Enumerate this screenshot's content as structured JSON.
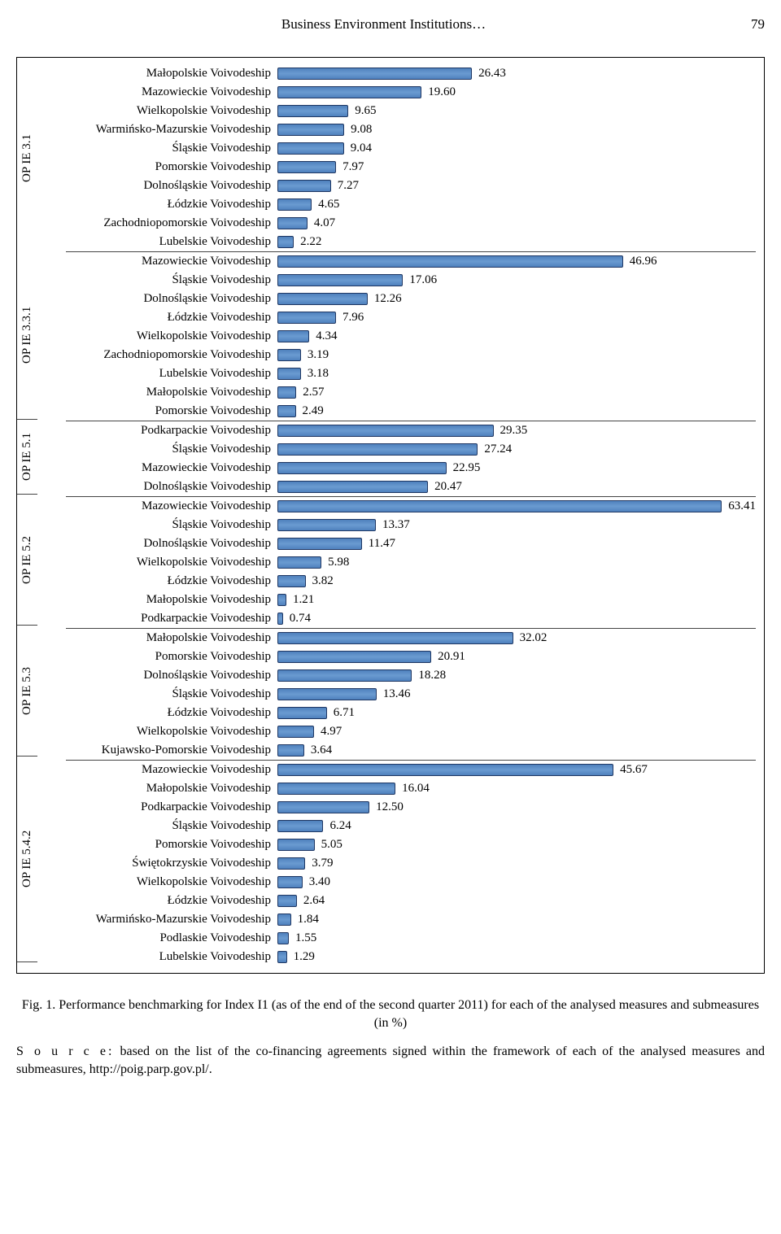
{
  "page_header": {
    "title": "Business Environment Institutions…",
    "page_no": "79"
  },
  "chart": {
    "type": "bar",
    "orientation": "horizontal",
    "x_max": 65,
    "bar_fill": "#4f81bd",
    "bar_border": "#1f3763",
    "grid_color": "#444444",
    "background": "#ffffff",
    "label_fontsize": 15,
    "value_fontsize": 15,
    "group_fontsize": 15,
    "groups": [
      {
        "name": "OP IE 3.1",
        "rows": [
          {
            "label": "Małopolskie Voivodeship",
            "value": 26.43
          },
          {
            "label": "Mazowieckie Voivodeship",
            "value": 19.6
          },
          {
            "label": "Wielkopolskie Voivodeship",
            "value": 9.65
          },
          {
            "label": "Warmińsko-Mazurskie Voivodeship",
            "value": 9.08
          },
          {
            "label": "Śląskie Voivodeship",
            "value": 9.04
          },
          {
            "label": "Pomorskie Voivodeship",
            "value": 7.97
          },
          {
            "label": "Dolnośląskie Voivodeship",
            "value": 7.27
          },
          {
            "label": "Łódzkie Voivodeship",
            "value": 4.65
          },
          {
            "label": "Zachodniopomorskie Voivodeship",
            "value": 4.07
          },
          {
            "label": "Lubelskie Voivodeship",
            "value": 2.22
          }
        ]
      },
      {
        "name": "OP IE 3.3.1",
        "rows": [
          {
            "label": "Mazowieckie Voivodeship",
            "value": 46.96
          },
          {
            "label": "Śląskie Voivodeship",
            "value": 17.06
          },
          {
            "label": "Dolnośląskie Voivodeship",
            "value": 12.26
          },
          {
            "label": "Łódzkie Voivodeship",
            "value": 7.96
          },
          {
            "label": "Wielkopolskie Voivodeship",
            "value": 4.34
          },
          {
            "label": "Zachodniopomorskie Voivodeship",
            "value": 3.19
          },
          {
            "label": "Lubelskie Voivodeship",
            "value": 3.18
          },
          {
            "label": "Małopolskie Voivodeship",
            "value": 2.57
          },
          {
            "label": "Pomorskie Voivodeship",
            "value": 2.49
          }
        ]
      },
      {
        "name": "OP IE 5.1",
        "rows": [
          {
            "label": "Podkarpackie Voivodeship",
            "value": 29.35
          },
          {
            "label": "Śląskie Voivodeship",
            "value": 27.24
          },
          {
            "label": "Mazowieckie Voivodeship",
            "value": 22.95
          },
          {
            "label": "Dolnośląskie Voivodeship",
            "value": 20.47
          }
        ]
      },
      {
        "name": "OP IE 5.2",
        "rows": [
          {
            "label": "Mazowieckie Voivodeship",
            "value": 63.41
          },
          {
            "label": "Śląskie Voivodeship",
            "value": 13.37
          },
          {
            "label": "Dolnośląskie Voivodeship",
            "value": 11.47
          },
          {
            "label": "Wielkopolskie Voivodeship",
            "value": 5.98
          },
          {
            "label": "Łódzkie Voivodeship",
            "value": 3.82
          },
          {
            "label": "Małopolskie Voivodeship",
            "value": 1.21
          },
          {
            "label": "Podkarpackie Voivodeship",
            "value": 0.74
          }
        ]
      },
      {
        "name": "OP IE 5.3",
        "rows": [
          {
            "label": "Małopolskie Voivodeship",
            "value": 32.02
          },
          {
            "label": "Pomorskie Voivodeship",
            "value": 20.91
          },
          {
            "label": "Dolnośląskie Voivodeship",
            "value": 18.28
          },
          {
            "label": "Śląskie Voivodeship",
            "value": 13.46
          },
          {
            "label": "Łódzkie Voivodeship",
            "value": 6.71
          },
          {
            "label": "Wielkopolskie Voivodeship",
            "value": 4.97
          },
          {
            "label": "Kujawsko-Pomorskie Voivodeship",
            "value": 3.64
          }
        ]
      },
      {
        "name": "OP IE 5.4.2",
        "rows": [
          {
            "label": "Mazowieckie Voivodeship",
            "value": 45.67
          },
          {
            "label": "Małopolskie Voivodeship",
            "value": 16.04
          },
          {
            "label": "Podkarpackie Voivodeship",
            "value": 12.5
          },
          {
            "label": "Śląskie Voivodeship",
            "value": 6.24
          },
          {
            "label": "Pomorskie Voivodeship",
            "value": 5.05
          },
          {
            "label": "Świętokrzyskie Voivodeship",
            "value": 3.79
          },
          {
            "label": "Wielkopolskie Voivodeship",
            "value": 3.4
          },
          {
            "label": "Łódzkie Voivodeship",
            "value": 2.64
          },
          {
            "label": "Warmińsko-Mazurskie Voivodeship",
            "value": 1.84
          },
          {
            "label": "Podlaskie Voivodeship",
            "value": 1.55
          },
          {
            "label": "Lubelskie Voivodeship",
            "value": 1.29
          }
        ]
      }
    ]
  },
  "caption": "Fig. 1. Performance benchmarking for Index I1 (as of the end of the second quarter 2011) for each of the analysed measures and submeasures (in %)",
  "source_lead": "S o u r c e:",
  "source_text": " based on the list of the co-financing agreements signed within the framework of each of the analysed measures and submeasures, http://poig.parp.gov.pl/."
}
